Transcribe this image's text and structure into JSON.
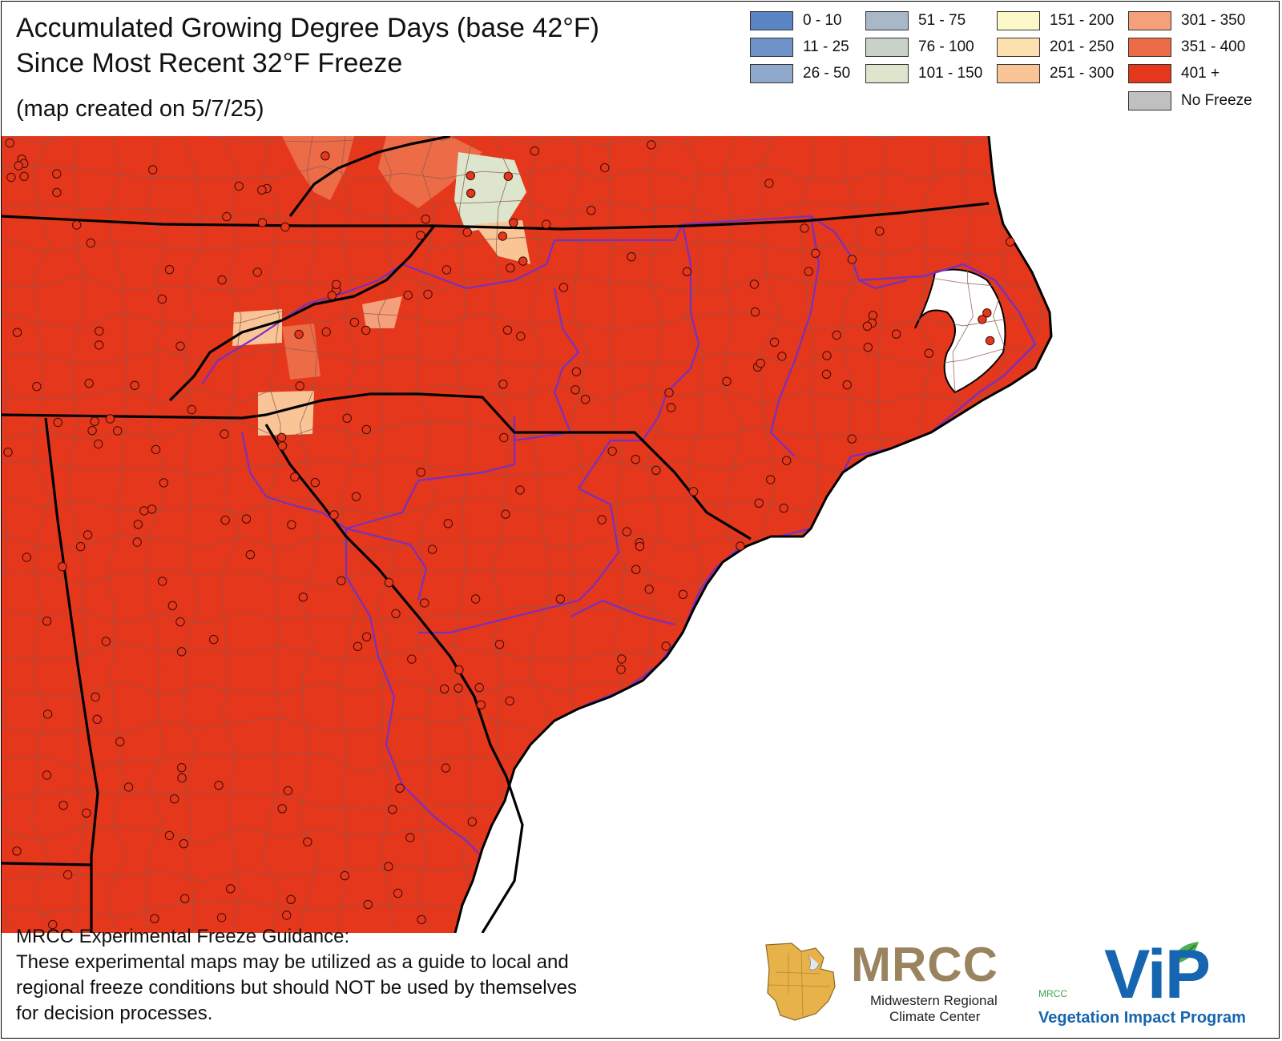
{
  "title_line1": "Accumulated Growing Degree Days (base 42°F)",
  "title_line2": "Since Most Recent 32°F Freeze",
  "subtitle": "(map created on 5/7/25)",
  "legend": [
    {
      "label": "0 - 10",
      "color": "#5b84c4"
    },
    {
      "label": "11 - 25",
      "color": "#6f93c8"
    },
    {
      "label": "26 - 50",
      "color": "#8ea9cc"
    },
    {
      "label": "51 - 75",
      "color": "#a8b8c8"
    },
    {
      "label": "76 - 100",
      "color": "#c9d2c8"
    },
    {
      "label": "101 - 150",
      "color": "#dde5cc"
    },
    {
      "label": "151 - 200",
      "color": "#fdf8c8"
    },
    {
      "label": "201 - 250",
      "color": "#fde0b0"
    },
    {
      "label": "251 - 300",
      "color": "#f9c496"
    },
    {
      "label": "301 - 350",
      "color": "#f4a07a"
    },
    {
      "label": "351 - 400",
      "color": "#ec6c48"
    },
    {
      "label": "401 +",
      "color": "#e5371b"
    },
    {
      "label": "No Freeze",
      "color": "#c0c0c0"
    }
  ],
  "map": {
    "icons": [
      "county-boundaries",
      "state-boundaries",
      "climate-division-boundaries",
      "station-dots"
    ],
    "colors": {
      "dominant_class": "#e5371b",
      "state_boundary": "#000000",
      "division_boundary": "#7a2fbf",
      "county_boundary": "#8a5a50"
    }
  },
  "disclaimer": {
    "heading": "MRCC Experimental Freeze Guidance:",
    "lines": [
      "These experimental maps may be utilized as a guide to local and",
      "regional freeze conditions but should NOT be used by themselves",
      "for decision processes."
    ]
  },
  "logos": {
    "mrcc": {
      "big": "MRCC",
      "line1": "Midwestern Regional",
      "line2": "Climate Center",
      "color": "#9a8460"
    },
    "vip": {
      "big": "ViP",
      "small": "MRCC",
      "name": "Vegetation Impact Program",
      "color": "#1565b0"
    }
  }
}
